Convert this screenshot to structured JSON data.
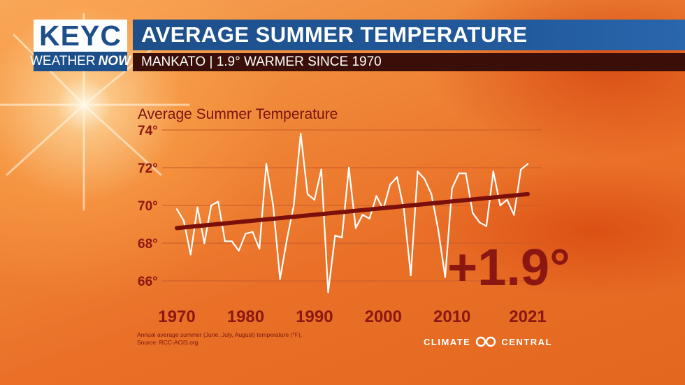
{
  "header": {
    "logo_top": "KEYC",
    "logo_weather": "WEATHER",
    "logo_now": "NOW",
    "title": "AVERAGE SUMMER TEMPERATURE",
    "subtitle": "MANKATO | 1.9° WARMER SINCE 1970"
  },
  "chart_data": {
    "type": "line",
    "title": "Average Summer Temperature",
    "xlabel": "",
    "ylabel": "",
    "xlim": [
      1970,
      2021
    ],
    "ylim": [
      65,
      74.5
    ],
    "y_ticks": [
      66,
      68,
      70,
      72,
      74
    ],
    "y_tick_labels": [
      "66°",
      "68°",
      "70°",
      "72°",
      "74°"
    ],
    "x_ticks": [
      1970,
      1980,
      1990,
      2000,
      2010,
      2021
    ],
    "x_tick_labels": [
      "1970",
      "1980",
      "1990",
      "2000",
      "2010",
      "2021"
    ],
    "grid": true,
    "x": [
      1970,
      1971,
      1972,
      1973,
      1974,
      1975,
      1976,
      1977,
      1978,
      1979,
      1980,
      1981,
      1982,
      1983,
      1984,
      1985,
      1986,
      1987,
      1988,
      1989,
      1990,
      1991,
      1992,
      1993,
      1994,
      1995,
      1996,
      1997,
      1998,
      1999,
      2000,
      2001,
      2002,
      2003,
      2004,
      2005,
      2006,
      2007,
      2008,
      2009,
      2010,
      2011,
      2012,
      2013,
      2014,
      2015,
      2016,
      2017,
      2018,
      2019,
      2020,
      2021
    ],
    "series": [
      {
        "values": [
          69.8,
          69.2,
          67.4,
          69.9,
          68.0,
          70.0,
          70.2,
          68.1,
          68.1,
          67.6,
          68.5,
          68.6,
          67.7,
          72.2,
          70.0,
          66.1,
          68.2,
          70.0,
          73.8,
          70.6,
          70.3,
          71.9,
          65.4,
          68.4,
          68.3,
          72.0,
          68.8,
          69.5,
          69.3,
          70.5,
          69.8,
          71.1,
          71.5,
          69.8,
          66.3,
          71.8,
          71.4,
          70.6,
          68.7,
          66.2,
          70.9,
          71.7,
          71.7,
          69.6,
          69.1,
          68.9,
          71.8,
          70.0,
          70.3,
          69.5,
          71.9,
          72.2
        ]
      }
    ],
    "trend": {
      "start": [
        1970,
        68.8
      ],
      "end": [
        2021,
        70.6
      ]
    },
    "annotation": "+1.9°",
    "note_line1": "Annual average summer (June, July, August) temperature (°F).",
    "note_line2": "Source: RCC-ACIS.org",
    "colors": {
      "data_line": "#ffffff",
      "trend_line": "#7a0f0c",
      "text": "#8b1712",
      "grid": "#c85a2a"
    }
  },
  "brand": {
    "left": "CLIMATE",
    "right": "CENTRAL"
  }
}
